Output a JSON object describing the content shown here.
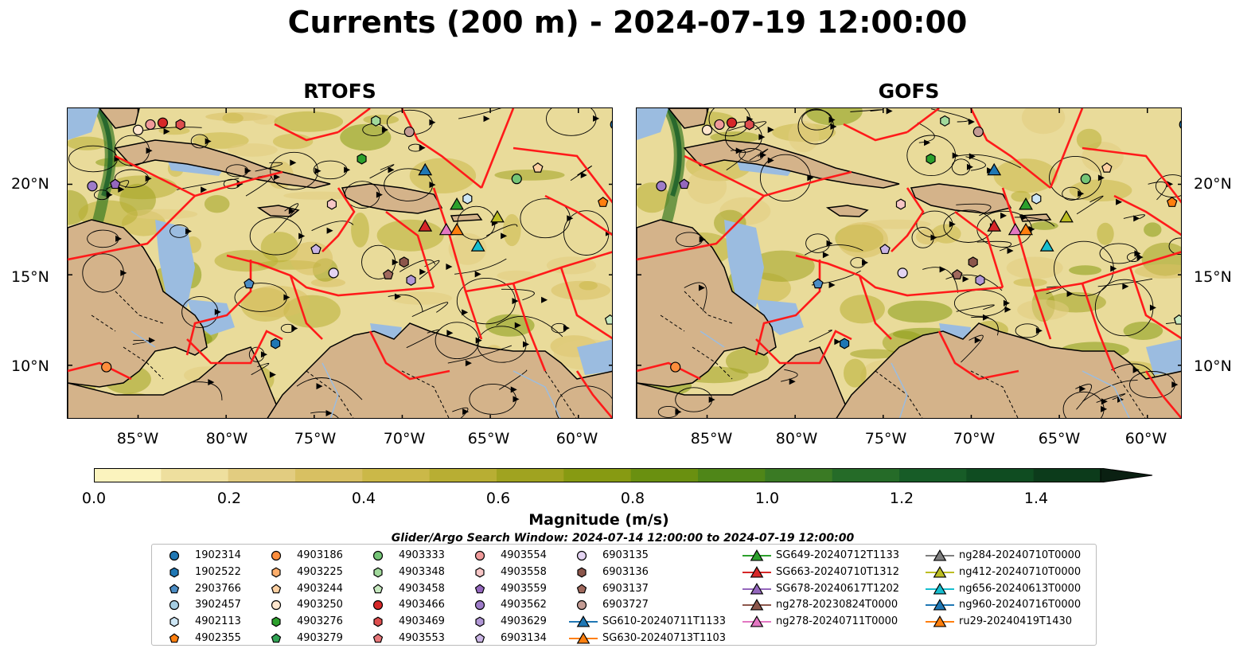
{
  "title": "Currents (200 m) - 2024-07-19 12:00:00",
  "panels": [
    {
      "title": "RTOFS"
    },
    {
      "title": "GOFS"
    }
  ],
  "lat_ticks": [
    "20°N",
    "15°N",
    "10°N"
  ],
  "lon_ticks": [
    "85°W",
    "80°W",
    "75°W",
    "70°W",
    "65°W",
    "60°W"
  ],
  "colorbar": {
    "label": "Magnitude (m/s)",
    "ticks": [
      "0.0",
      "0.2",
      "0.4",
      "0.6",
      "0.8",
      "1.0",
      "1.2",
      "1.4"
    ],
    "colors": [
      "#fbf3be",
      "#eedf9e",
      "#e2cc80",
      "#d8c062",
      "#cbb848",
      "#b8ae33",
      "#a0a320",
      "#879a12",
      "#6a9010",
      "#4f8618",
      "#3a7a24",
      "#256b28",
      "#175c27",
      "#0f4c21",
      "#0c3b1b",
      "#0b2c16",
      "#0a2012"
    ]
  },
  "search_window": "Glider/Argo Search Window: 2024-07-14 12:00:00 to 2024-07-19 12:00:00",
  "legend": [
    {
      "label": "1902314",
      "marker": "circle",
      "color": "#1f77b4"
    },
    {
      "label": "1902522",
      "marker": "hexagon",
      "color": "#1f77b4"
    },
    {
      "label": "2903766",
      "marker": "pentagon",
      "color": "#4b8cc4"
    },
    {
      "label": "3902457",
      "marker": "circle",
      "color": "#a6cee3"
    },
    {
      "label": "4902113",
      "marker": "hexagon",
      "color": "#cde6f5"
    },
    {
      "label": "4902355",
      "marker": "pentagon",
      "color": "#ff7f0e"
    },
    {
      "label": "4903186",
      "marker": "circle",
      "color": "#fd8d3c"
    },
    {
      "label": "4903225",
      "marker": "hexagon",
      "color": "#fdae6b"
    },
    {
      "label": "4903244",
      "marker": "pentagon",
      "color": "#fdd0a2"
    },
    {
      "label": "4903250",
      "marker": "circle",
      "color": "#fee6ce"
    },
    {
      "label": "4903276",
      "marker": "hexagon",
      "color": "#2ca02c"
    },
    {
      "label": "4903279",
      "marker": "pentagon",
      "color": "#31a354"
    },
    {
      "label": "4903333",
      "marker": "circle",
      "color": "#74c476"
    },
    {
      "label": "4903348",
      "marker": "hexagon",
      "color": "#a1d99b"
    },
    {
      "label": "4903458",
      "marker": "pentagon",
      "color": "#c7e9c0"
    },
    {
      "label": "4903466",
      "marker": "circle",
      "color": "#d62728"
    },
    {
      "label": "4903469",
      "marker": "hexagon",
      "color": "#de4e4e"
    },
    {
      "label": "4903553",
      "marker": "pentagon",
      "color": "#e7777a"
    },
    {
      "label": "4903554",
      "marker": "circle",
      "color": "#f09a9a"
    },
    {
      "label": "4903558",
      "marker": "hexagon",
      "color": "#f7c6c6"
    },
    {
      "label": "4903559",
      "marker": "pentagon",
      "color": "#9467bd"
    },
    {
      "label": "4903562",
      "marker": "circle",
      "color": "#9e7cc9"
    },
    {
      "label": "4903629",
      "marker": "hexagon",
      "color": "#b197d6"
    },
    {
      "label": "6903134",
      "marker": "pentagon",
      "color": "#c9b4e3"
    },
    {
      "label": "6903135",
      "marker": "circle",
      "color": "#e4d4f2"
    },
    {
      "label": "6903136",
      "marker": "hexagon",
      "color": "#8c564b"
    },
    {
      "label": "6903137",
      "marker": "pentagon",
      "color": "#a0695d"
    },
    {
      "label": "6903727",
      "marker": "circle",
      "color": "#c49c94"
    },
    {
      "label": "SG610-20240711T1133",
      "marker": "triangle",
      "color": "#1f77b4",
      "line": true
    },
    {
      "label": "SG630-20240713T1103",
      "marker": "triangle",
      "color": "#ff7f0e",
      "line": true
    },
    {
      "label": "SG649-20240712T1133",
      "marker": "triangle",
      "color": "#2ca02c",
      "line": true
    },
    {
      "label": "SG663-20240710T1312",
      "marker": "triangle",
      "color": "#d62728",
      "line": true
    },
    {
      "label": "SG678-20240617T1202",
      "marker": "triangle",
      "color": "#9467bd",
      "line": true
    },
    {
      "label": "ng278-20230824T0000",
      "marker": "triangle",
      "color": "#8c564b",
      "line": true
    },
    {
      "label": "ng278-20240711T0000",
      "marker": "triangle",
      "color": "#e377c2",
      "line": true
    },
    {
      "label": "ng284-20240710T0000",
      "marker": "triangle",
      "color": "#7f7f7f",
      "line": true
    },
    {
      "label": "ng412-20240710T0000",
      "marker": "triangle",
      "color": "#bcbd22",
      "line": true
    },
    {
      "label": "ng656-20240613T0000",
      "marker": "triangle",
      "color": "#17becf",
      "line": true
    },
    {
      "label": "ng960-20240716T0000",
      "marker": "triangle",
      "color": "#1f77b4",
      "line": true
    },
    {
      "label": "ru29-20240419T1430",
      "marker": "triangle",
      "color": "#ff7f0e",
      "line": true
    }
  ],
  "map_markers": [
    {
      "lon": -87.6,
      "lat": 19.9,
      "marker": "circle",
      "color": "#9e7cc9"
    },
    {
      "lon": -86.3,
      "lat": 20.0,
      "marker": "pentagon",
      "color": "#9467bd"
    },
    {
      "lon": -86.8,
      "lat": 9.9,
      "marker": "circle",
      "color": "#fd8d3c"
    },
    {
      "lon": -85.0,
      "lat": 23.0,
      "marker": "circle",
      "color": "#fee6ce"
    },
    {
      "lon": -84.3,
      "lat": 23.3,
      "marker": "circle",
      "color": "#f09a9a"
    },
    {
      "lon": -83.6,
      "lat": 23.4,
      "marker": "circle",
      "color": "#d62728"
    },
    {
      "lon": -82.6,
      "lat": 23.3,
      "marker": "hexagon",
      "color": "#de4e4e"
    },
    {
      "lon": -78.7,
      "lat": 14.5,
      "marker": "pentagon",
      "color": "#4b8cc4"
    },
    {
      "lon": -77.2,
      "lat": 11.2,
      "marker": "hexagon",
      "color": "#1f77b4"
    },
    {
      "lon": -74.0,
      "lat": 18.9,
      "marker": "hexagon",
      "color": "#f7c6c6"
    },
    {
      "lon": -74.9,
      "lat": 16.4,
      "marker": "pentagon",
      "color": "#c9b4e3"
    },
    {
      "lon": -73.9,
      "lat": 15.1,
      "marker": "circle",
      "color": "#e4d4f2"
    },
    {
      "lon": -72.3,
      "lat": 21.4,
      "marker": "hexagon",
      "color": "#2ca02c"
    },
    {
      "lon": -71.5,
      "lat": 23.5,
      "marker": "hexagon",
      "color": "#a1d99b"
    },
    {
      "lon": -69.6,
      "lat": 22.9,
      "marker": "circle",
      "color": "#c49c94"
    },
    {
      "lon": -69.9,
      "lat": 15.7,
      "marker": "hexagon",
      "color": "#8c564b"
    },
    {
      "lon": -70.8,
      "lat": 15.0,
      "marker": "pentagon",
      "color": "#a0695d"
    },
    {
      "lon": -69.5,
      "lat": 14.7,
      "marker": "hexagon",
      "color": "#b197d6"
    },
    {
      "lon": -66.3,
      "lat": 19.2,
      "marker": "hexagon",
      "color": "#cde6f5"
    },
    {
      "lon": -63.5,
      "lat": 20.3,
      "marker": "circle",
      "color": "#74c476"
    },
    {
      "lon": -62.3,
      "lat": 20.9,
      "marker": "pentagon",
      "color": "#fdd0a2"
    },
    {
      "lon": -58.6,
      "lat": 19.0,
      "marker": "pentagon",
      "color": "#ff7f0e"
    },
    {
      "lon": -57.9,
      "lat": 23.3,
      "marker": "circle",
      "color": "#1f77b4"
    },
    {
      "lon": -58.2,
      "lat": 12.5,
      "marker": "pentagon",
      "color": "#c7e9c0"
    },
    {
      "lon": -68.7,
      "lat": 20.8,
      "marker": "triangle",
      "color": "#1f77b4"
    },
    {
      "lon": -66.9,
      "lat": 18.9,
      "marker": "triangle",
      "color": "#2ca02c"
    },
    {
      "lon": -64.6,
      "lat": 18.2,
      "marker": "triangle",
      "color": "#bcbd22"
    },
    {
      "lon": -68.7,
      "lat": 17.7,
      "marker": "triangle",
      "color": "#d62728"
    },
    {
      "lon": -67.5,
      "lat": 17.5,
      "marker": "triangle",
      "color": "#e377c2"
    },
    {
      "lon": -66.9,
      "lat": 17.5,
      "marker": "triangle",
      "color": "#ff7f0e"
    },
    {
      "lon": -65.7,
      "lat": 16.6,
      "marker": "triangle",
      "color": "#17becf"
    }
  ]
}
